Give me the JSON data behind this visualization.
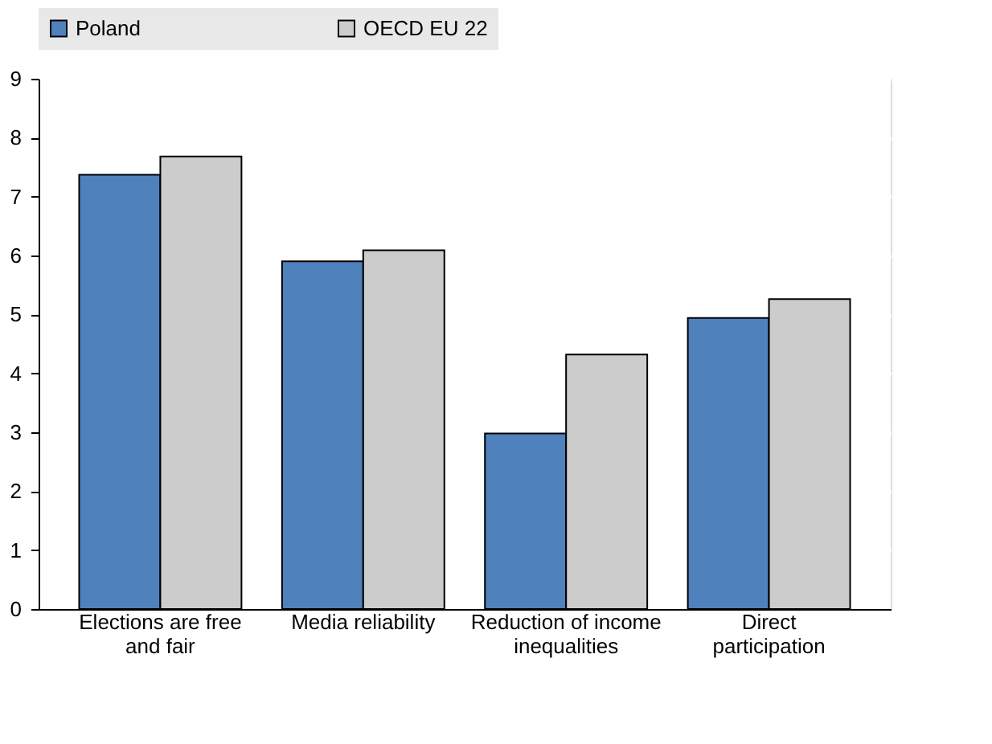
{
  "chart_data": {
    "type": "bar",
    "categories": [
      "Elections are free and fair",
      "Media reliability",
      "Reduction of income inequalities",
      "Direct participation"
    ],
    "series": [
      {
        "name": "Poland",
        "color": "#4f81bd",
        "values": [
          7.37,
          5.9,
          2.98,
          4.94
        ]
      },
      {
        "name": "OECD EU 22",
        "color": "#cccccc",
        "values": [
          7.68,
          6.09,
          4.32,
          5.26
        ]
      }
    ],
    "ylim": [
      0,
      9
    ],
    "yticks": [
      0,
      1,
      2,
      3,
      4,
      5,
      6,
      7,
      8,
      9
    ],
    "grid": true,
    "legend": "top"
  }
}
